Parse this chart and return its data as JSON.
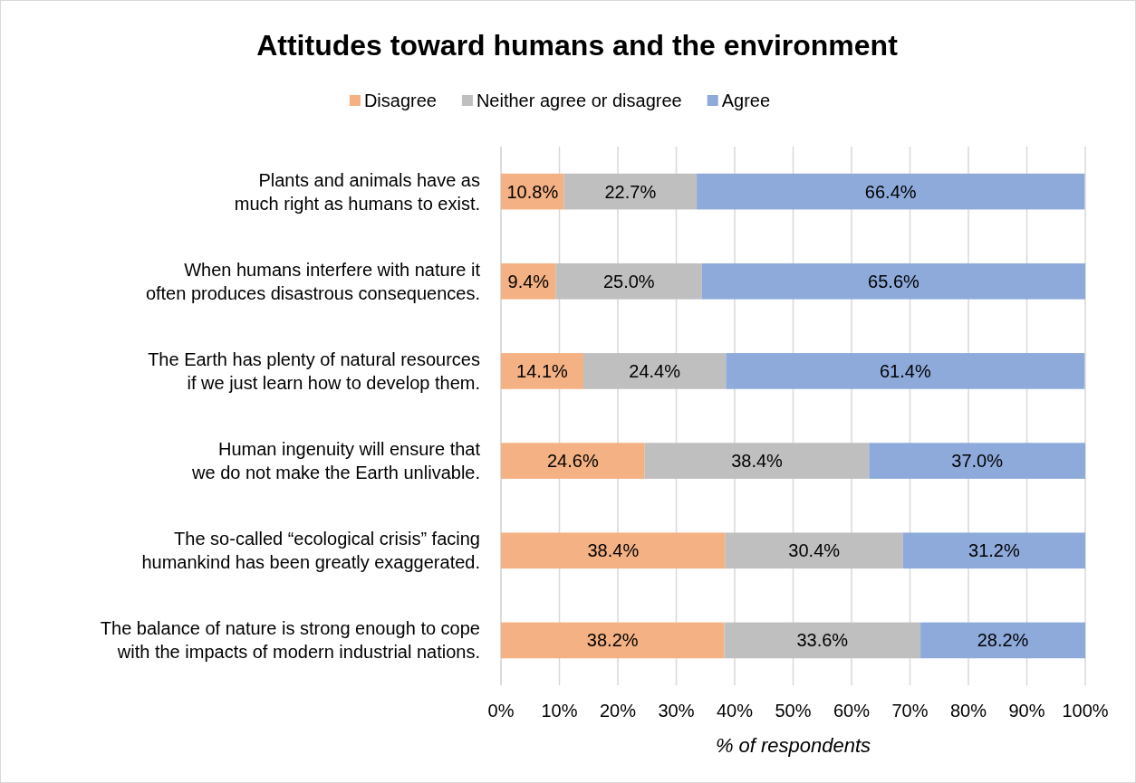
{
  "chart_data": {
    "type": "bar",
    "title": "Attitudes toward humans and the environment",
    "xlabel": "% of respondents",
    "orientation": "horizontal",
    "stacked": true,
    "legend": "top",
    "grid": "x",
    "categories": [
      "Plants and animals have as much right as humans to exist.",
      "When humans interfere with nature it often produces disastrous consequences.",
      "The Earth has plenty of natural resources if we just learn how to develop them.",
      "Human ingenuity will ensure that we do not make the Earth unlivable.",
      "The so-called “ecological crisis” facing humankind has been greatly exaggerated.",
      "The balance of nature is strong enough to cope with the impacts of modern industrial nations."
    ],
    "series": [
      {
        "name": "Disagree",
        "color": "#f4b183",
        "values": [
          10.8,
          9.4,
          14.1,
          24.6,
          38.4,
          38.2
        ],
        "value_labels": [
          "10.8%",
          "9.4%",
          "14.1%",
          "24.6%",
          "38.4%",
          "38.2%"
        ]
      },
      {
        "name": "Neither agree or disagree",
        "color": "#bfbfbf",
        "values": [
          22.7,
          25.0,
          24.4,
          38.4,
          30.4,
          33.6
        ],
        "value_labels": [
          "22.7%",
          "25.0%",
          "24.4%",
          "38.4%",
          "30.4%",
          "33.6%"
        ]
      },
      {
        "name": "Agree",
        "color": "#8eaadb",
        "values": [
          66.4,
          65.6,
          61.4,
          37.0,
          31.2,
          28.2
        ],
        "value_labels": [
          "66.4%",
          "65.6%",
          "61.4%",
          "37.0%",
          "31.2%",
          "28.2%"
        ]
      }
    ],
    "xlim": [
      0,
      100
    ],
    "xticks": [
      {
        "value": 0,
        "label": "0%"
      },
      {
        "value": 10,
        "label": "10%"
      },
      {
        "value": 20,
        "label": "20%"
      },
      {
        "value": 30,
        "label": "30%"
      },
      {
        "value": 40,
        "label": "40%"
      },
      {
        "value": 50,
        "label": "50%"
      },
      {
        "value": 60,
        "label": "60%"
      },
      {
        "value": 70,
        "label": "70%"
      },
      {
        "value": 80,
        "label": "80%"
      },
      {
        "value": 90,
        "label": "90%"
      },
      {
        "value": 100,
        "label": "100%"
      }
    ]
  }
}
